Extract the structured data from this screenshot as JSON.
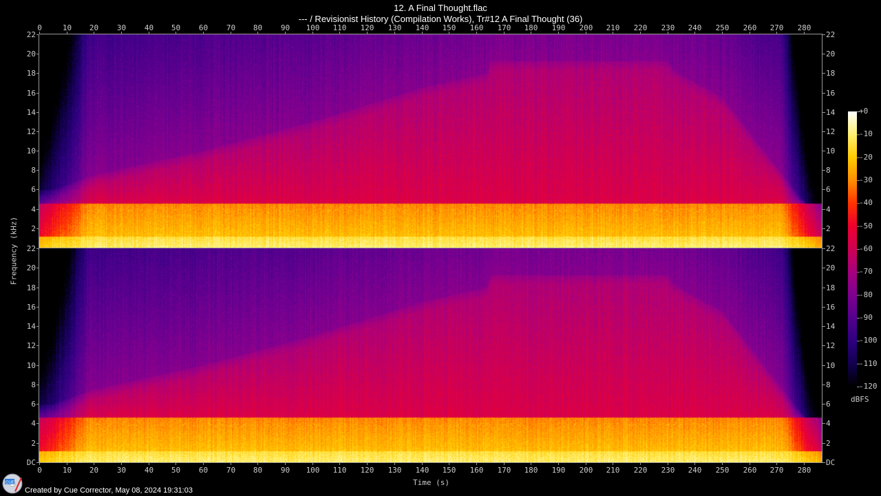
{
  "title": "12. A Final Thought.flac",
  "subtitle": "--- / Revisionist History (Compilation Works), Tr#12 A Final Thought (36)",
  "footer": "Created by Cue Corrector, May 08, 2024 19:31:03",
  "logo_text": "CUE",
  "chart_data": {
    "type": "heatmap",
    "kind": "spectrogram",
    "channels": 2,
    "xlabel": "Time (s)",
    "ylabel": "Frequency (kHz)",
    "xlim": [
      0,
      287
    ],
    "ylim": [
      0,
      22
    ],
    "x_ticks": [
      "0",
      "10",
      "20",
      "30",
      "40",
      "50",
      "60",
      "70",
      "80",
      "90",
      "100",
      "110",
      "120",
      "130",
      "140",
      "150",
      "160",
      "170",
      "180",
      "190",
      "200",
      "210",
      "220",
      "230",
      "240",
      "250",
      "260",
      "270",
      "280"
    ],
    "y_ticks_top": [
      "22",
      "20",
      "18",
      "16",
      "14",
      "12",
      "10",
      "8",
      "6",
      "4",
      "2"
    ],
    "y_ticks_bottom": [
      "22",
      "20",
      "18",
      "16",
      "14",
      "12",
      "10",
      "8",
      "6",
      "4",
      "2",
      "DC"
    ],
    "colorbar": {
      "label": "dBFS",
      "range": [
        -120,
        0
      ],
      "ticks": [
        "+0",
        "-10",
        "-20",
        "-30",
        "-40",
        "-50",
        "-60",
        "-70",
        "-80",
        "-90",
        "-100",
        "-110",
        "-120"
      ]
    },
    "cutoff_envelope": {
      "time_s": [
        5,
        20,
        60,
        100,
        140,
        164,
        165,
        230,
        232,
        250,
        265,
        275,
        282
      ],
      "freq_khz": [
        6,
        7.5,
        10,
        13,
        16.5,
        18,
        19.3,
        19.3,
        18.3,
        15.5,
        10,
        6.5,
        4
      ]
    },
    "colormap": [
      "#000000",
      "#12004f",
      "#2e0080",
      "#55008f",
      "#7f0090",
      "#a6007f",
      "#cf0055",
      "#ee0030",
      "#ff3300",
      "#ff8e00",
      "#ffcc00",
      "#fff070",
      "#ffffff"
    ]
  }
}
